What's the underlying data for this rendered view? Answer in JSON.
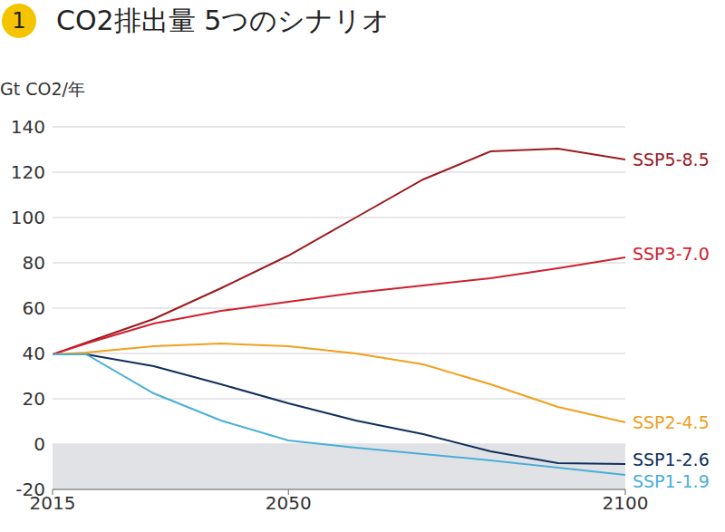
{
  "chart_data": {
    "type": "line",
    "badge": "1",
    "title": "CO2排出量 5つのシナリオ",
    "ylabel": "Gt CO2/年",
    "x": [
      2015,
      2020,
      2030,
      2040,
      2050,
      2060,
      2070,
      2080,
      2090,
      2100
    ],
    "xlim": [
      2015,
      2100
    ],
    "xticks": [
      2015,
      2050,
      2100
    ],
    "ylim": [
      -20,
      140
    ],
    "yticks": [
      -20,
      0,
      20,
      40,
      60,
      80,
      100,
      120,
      140
    ],
    "grid": true,
    "series": [
      {
        "name": "SSP5-8.5",
        "color": "#9b1b1f",
        "values": [
          39.6,
          44.8,
          55.2,
          68.8,
          83.2,
          100,
          116.8,
          129.2,
          130.4,
          125.6
        ]
      },
      {
        "name": "SSP3-7.0",
        "color": "#d0202e",
        "values": [
          39.6,
          44.4,
          53.2,
          58.8,
          62.8,
          66.8,
          70,
          73.2,
          77.6,
          82.4
        ]
      },
      {
        "name": "SSP2-4.5",
        "color": "#f0a01e",
        "values": [
          39.6,
          40.4,
          43.2,
          44.4,
          43.2,
          40,
          35.2,
          26.4,
          16.4,
          9.6
        ]
      },
      {
        "name": "SSP1-2.6",
        "color": "#0f2f5c",
        "values": [
          39.6,
          39.6,
          34.4,
          26.4,
          18,
          10.4,
          4.4,
          -3.2,
          -8.4,
          -8.8
        ]
      },
      {
        "name": "SSP1-1.9",
        "color": "#4aaed6",
        "values": [
          39.6,
          39.6,
          22.4,
          10.4,
          1.6,
          -1.6,
          -4.4,
          -7.2,
          -10.4,
          -13.6
        ]
      }
    ]
  }
}
